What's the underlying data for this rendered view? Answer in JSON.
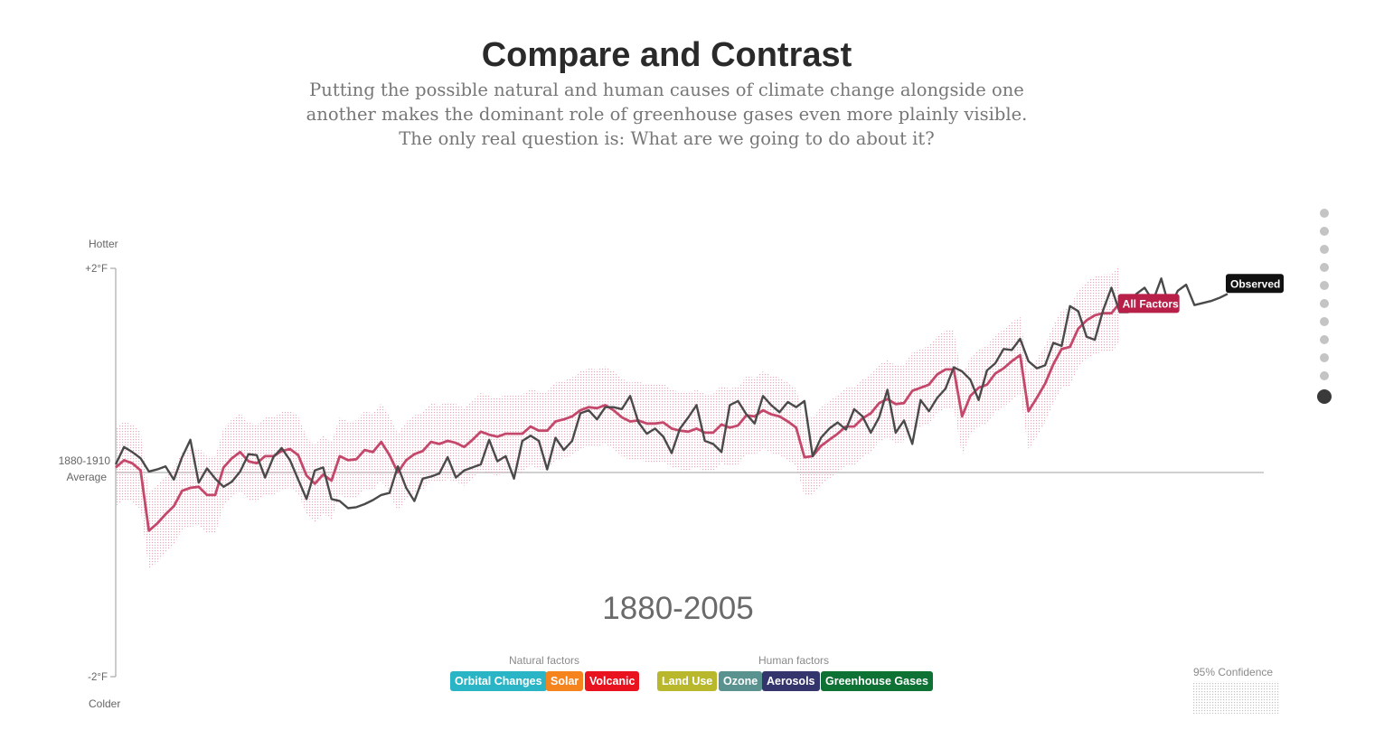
{
  "header": {
    "title": "Compare and Contrast",
    "subtitle_lines": [
      "Putting the possible natural and human causes of climate change alongside one",
      "another makes the dominant role of greenhouse gases even more plainly visible.",
      "The only real question is: What are we going to do about it?"
    ]
  },
  "chart_data": {
    "type": "line",
    "title": "Compare and Contrast",
    "ylabel_top": "Hotter",
    "ylabel_bottom": "Colder",
    "baseline_label": [
      "1880-1910",
      "Average"
    ],
    "y_tick_top": "+2°F",
    "y_tick_bottom": "-2°F",
    "ylim": [
      -2,
      2
    ],
    "xlim": [
      1880,
      2014
    ],
    "period_label": "1880-2005",
    "series": [
      {
        "name": "All Factors",
        "color": "#b8204a",
        "label": "All Factors",
        "x_start": 1880,
        "values": [
          0.05,
          0.12,
          0.09,
          0.02,
          -0.57,
          -0.5,
          -0.41,
          -0.33,
          -0.18,
          -0.15,
          -0.14,
          -0.22,
          -0.22,
          0.05,
          0.14,
          0.2,
          0.11,
          0.09,
          0.16,
          0.16,
          0.21,
          0.23,
          0.17,
          -0.03,
          -0.11,
          -0.02,
          -0.08,
          0.16,
          0.12,
          0.13,
          0.22,
          0.2,
          0.3,
          0.17,
          0.0,
          0.12,
          0.18,
          0.21,
          0.3,
          0.28,
          0.31,
          0.29,
          0.25,
          0.32,
          0.4,
          0.37,
          0.35,
          0.38,
          0.38,
          0.38,
          0.45,
          0.41,
          0.41,
          0.5,
          0.52,
          0.55,
          0.61,
          0.64,
          0.63,
          0.66,
          0.61,
          0.54,
          0.5,
          0.51,
          0.48,
          0.48,
          0.49,
          0.43,
          0.41,
          0.4,
          0.43,
          0.39,
          0.39,
          0.47,
          0.44,
          0.46,
          0.56,
          0.55,
          0.61,
          0.57,
          0.55,
          0.5,
          0.44,
          0.15,
          0.16,
          0.26,
          0.32,
          0.38,
          0.45,
          0.45,
          0.53,
          0.58,
          0.68,
          0.72,
          0.67,
          0.68,
          0.8,
          0.83,
          0.86,
          0.96,
          1.01,
          1.01,
          0.55,
          0.75,
          0.83,
          0.86,
          0.97,
          1.02,
          1.09,
          1.15,
          0.6,
          0.73,
          0.87,
          1.06,
          1.21,
          1.23,
          1.41,
          1.49,
          1.54,
          1.56,
          1.56,
          1.66
        ],
        "ci_halfwidth": 0.38
      },
      {
        "name": "Observed",
        "color": "#4a4a4a",
        "label": "Observed",
        "x_start": 1880,
        "values": [
          0.08,
          0.25,
          0.2,
          0.14,
          0.01,
          0.03,
          0.06,
          -0.07,
          0.15,
          0.32,
          -0.1,
          0.04,
          -0.06,
          -0.14,
          -0.09,
          0.01,
          0.18,
          0.17,
          -0.05,
          0.15,
          0.24,
          0.12,
          -0.07,
          -0.26,
          0.02,
          0.05,
          -0.26,
          -0.28,
          -0.35,
          -0.34,
          -0.31,
          -0.27,
          -0.22,
          -0.2,
          0.06,
          -0.15,
          -0.28,
          -0.06,
          -0.04,
          -0.01,
          0.15,
          -0.05,
          0.02,
          0.05,
          0.08,
          0.32,
          0.11,
          0.16,
          -0.06,
          0.31,
          0.36,
          0.31,
          0.03,
          0.34,
          0.22,
          0.31,
          0.58,
          0.61,
          0.52,
          0.64,
          0.64,
          0.62,
          0.75,
          0.49,
          0.38,
          0.43,
          0.35,
          0.19,
          0.43,
          0.54,
          0.66,
          0.31,
          0.28,
          0.2,
          0.66,
          0.7,
          0.57,
          0.48,
          0.75,
          0.66,
          0.59,
          0.69,
          0.64,
          0.7,
          0.16,
          0.34,
          0.43,
          0.49,
          0.42,
          0.62,
          0.55,
          0.39,
          0.54,
          0.81,
          0.39,
          0.51,
          0.28,
          0.71,
          0.6,
          0.73,
          0.82,
          1.03,
          0.99,
          0.91,
          0.71,
          1.0,
          1.07,
          1.21,
          1.2,
          1.31,
          1.09,
          1.02,
          1.05,
          1.27,
          1.24,
          1.63,
          1.58,
          1.33,
          1.3,
          1.59,
          1.81,
          1.57,
          1.57,
          1.75,
          1.81,
          1.68,
          1.9,
          1.61,
          1.78,
          1.84,
          1.64,
          1.66,
          1.68,
          1.71,
          1.75
        ],
        "ci_halfwidth": 0
      }
    ],
    "legend": {
      "natural_label": "Natural factors",
      "human_label": "Human factors",
      "natural": [
        {
          "label": "Orbital Changes",
          "color": "#2ab5c6"
        },
        {
          "label": "Solar",
          "color": "#f5841f"
        },
        {
          "label": "Volcanic",
          "color": "#e8131f"
        }
      ],
      "human": [
        {
          "label": "Land Use",
          "color": "#b9b82d"
        },
        {
          "label": "Ozone",
          "color": "#5a9290"
        },
        {
          "label": "Aerosols",
          "color": "#35356d"
        },
        {
          "label": "Greenhouse Gases",
          "color": "#0e7234"
        }
      ],
      "confidence_label": "95% Confidence"
    },
    "legend_position": "bottom-center",
    "grid": false
  },
  "navigation": {
    "dot_count": 11,
    "active_index": 10
  }
}
